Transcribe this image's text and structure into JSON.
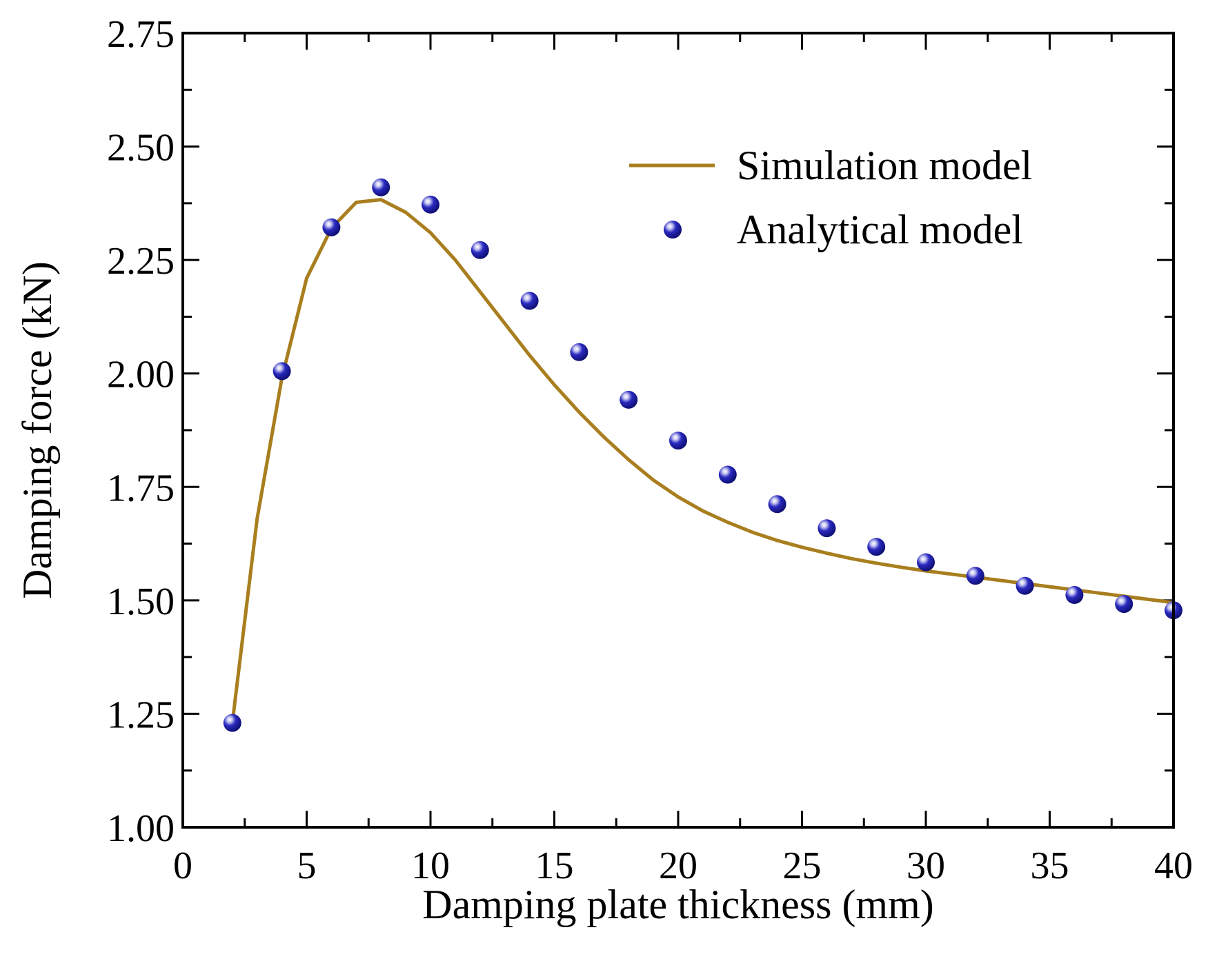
{
  "chart_data": {
    "type": "line",
    "title": "",
    "xlabel": "Damping plate thickness (mm)",
    "ylabel": "Damping force (kN)",
    "xlim": [
      0,
      40
    ],
    "ylim": [
      1.0,
      2.75
    ],
    "xticks": [
      0,
      5,
      10,
      15,
      20,
      25,
      30,
      35,
      40
    ],
    "xtick_labels": [
      "0",
      "5",
      "10",
      "15",
      "20",
      "25",
      "30",
      "35",
      "40"
    ],
    "yticks": [
      1.0,
      1.25,
      1.5,
      1.75,
      2.0,
      2.25,
      2.5,
      2.75
    ],
    "ytick_labels": [
      "1.00",
      "1.25",
      "1.50",
      "1.75",
      "2.00",
      "2.25",
      "2.50",
      "2.75"
    ],
    "grid": false,
    "legend_position": "top-right",
    "colors": {
      "line": "#A87E1E",
      "marker": "#1C1CA8",
      "axis": "#000000"
    },
    "series": [
      {
        "name": "Simulation model",
        "kind": "line",
        "x": [
          2,
          3,
          4,
          5,
          6,
          7,
          8,
          9,
          10,
          11,
          12,
          13,
          14,
          15,
          16,
          17,
          18,
          19,
          20,
          21,
          22,
          23,
          24,
          25,
          26,
          27,
          28,
          29,
          30,
          31,
          32,
          33,
          34,
          35,
          36,
          37,
          38,
          39,
          40
        ],
        "values": [
          1.23,
          1.68,
          1.99,
          2.21,
          2.32,
          2.377,
          2.383,
          2.355,
          2.31,
          2.25,
          2.18,
          2.11,
          2.04,
          1.975,
          1.915,
          1.86,
          1.81,
          1.765,
          1.728,
          1.697,
          1.672,
          1.65,
          1.632,
          1.617,
          1.604,
          1.592,
          1.582,
          1.573,
          1.565,
          1.558,
          1.551,
          1.544,
          1.537,
          1.53,
          1.523,
          1.516,
          1.509,
          1.502,
          1.495
        ]
      },
      {
        "name": "Analytical model",
        "kind": "scatter",
        "x": [
          2,
          4,
          6,
          8,
          10,
          12,
          14,
          16,
          18,
          20,
          22,
          24,
          26,
          28,
          30,
          32,
          34,
          36,
          38,
          40
        ],
        "values": [
          1.23,
          2.005,
          2.322,
          2.41,
          2.372,
          2.272,
          2.16,
          2.047,
          1.942,
          1.852,
          1.777,
          1.712,
          1.659,
          1.618,
          1.584,
          1.554,
          1.532,
          1.512,
          1.492,
          1.478
        ]
      }
    ]
  }
}
